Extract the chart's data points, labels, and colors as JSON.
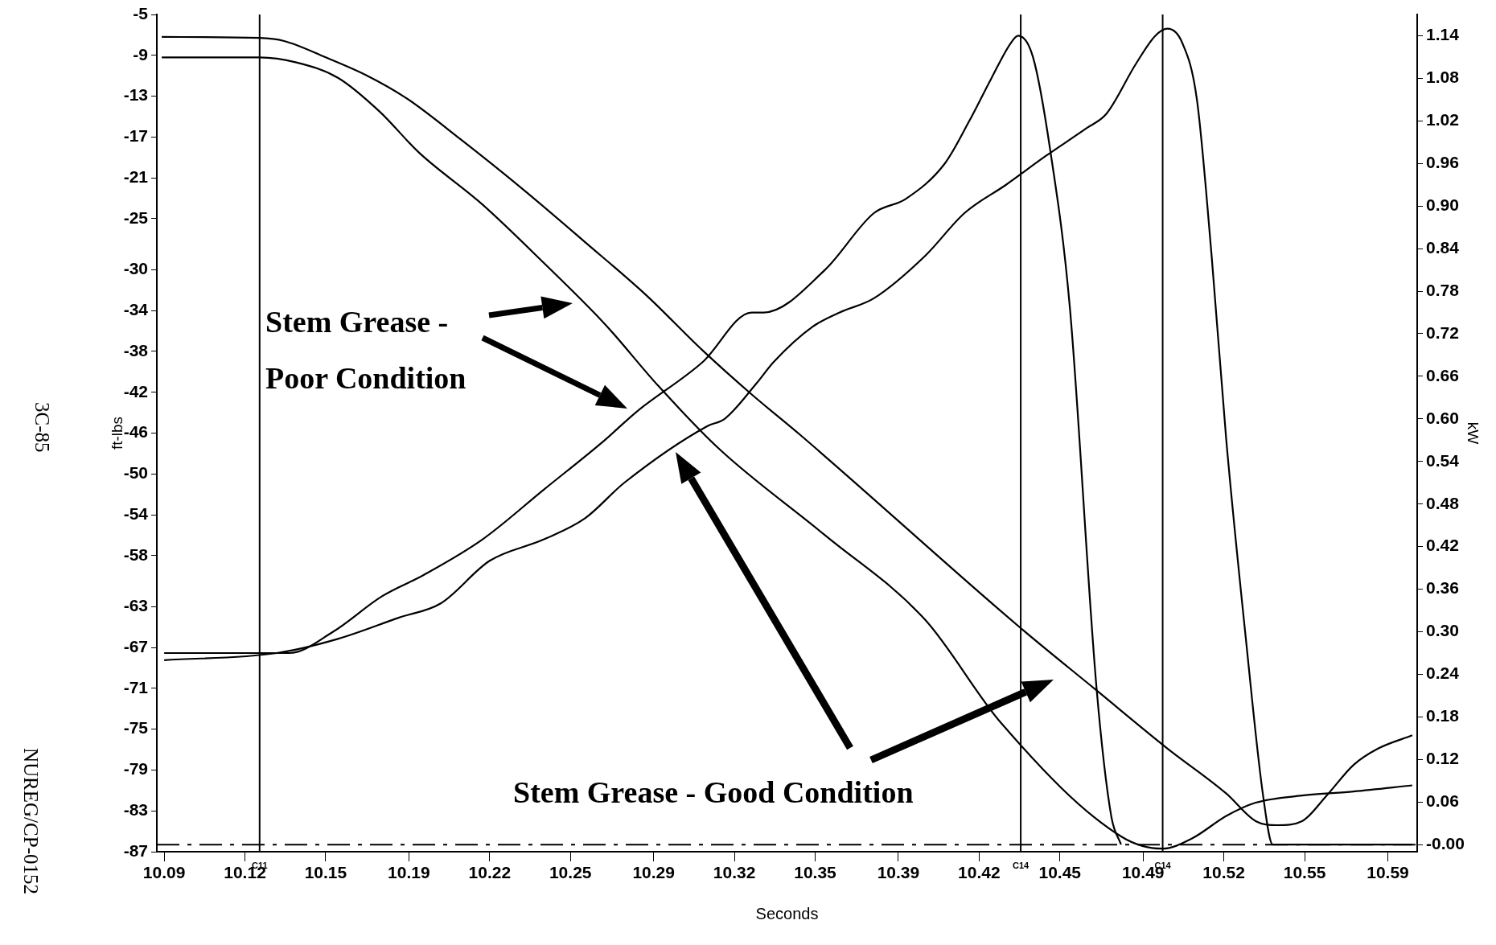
{
  "chart_data": {
    "type": "line",
    "xlabel": "Seconds",
    "ylabel": "ft-lbs",
    "y2label": "kW",
    "xlim": [
      10.084,
      10.599
    ],
    "ylim": [
      -87,
      -5
    ],
    "y2lim": [
      -0.01,
      1.17
    ],
    "xticks": [
      {
        "value": 10.087,
        "label": "10.09"
      },
      {
        "value": 10.12,
        "label": "10.12"
      },
      {
        "value": 10.153,
        "label": "10.15"
      },
      {
        "value": 10.187,
        "label": "10.19"
      },
      {
        "value": 10.22,
        "label": "10.22"
      },
      {
        "value": 10.253,
        "label": "10.25"
      },
      {
        "value": 10.287,
        "label": "10.29"
      },
      {
        "value": 10.32,
        "label": "10.32"
      },
      {
        "value": 10.353,
        "label": "10.35"
      },
      {
        "value": 10.387,
        "label": "10.39"
      },
      {
        "value": 10.42,
        "label": "10.42"
      },
      {
        "value": 10.453,
        "label": "10.45"
      },
      {
        "value": 10.487,
        "label": "10.49"
      },
      {
        "value": 10.52,
        "label": "10.52"
      },
      {
        "value": 10.553,
        "label": "10.55"
      },
      {
        "value": 10.587,
        "label": "10.59"
      }
    ],
    "yticks": [
      -5,
      -9,
      -13,
      -17,
      -21,
      -25,
      -30,
      -34,
      -38,
      -42,
      -46,
      -50,
      -54,
      -58,
      -63,
      -67,
      -71,
      -75,
      -79,
      -83,
      -87
    ],
    "y2ticks": [
      {
        "value": 0,
        "label": "-0.00"
      },
      {
        "value": 0.06,
        "label": "0.06"
      },
      {
        "value": 0.12,
        "label": "0.12"
      },
      {
        "value": 0.18,
        "label": "0.18"
      },
      {
        "value": 0.24,
        "label": "0.24"
      },
      {
        "value": 0.3,
        "label": "0.30"
      },
      {
        "value": 0.36,
        "label": "0.36"
      },
      {
        "value": 0.42,
        "label": "0.42"
      },
      {
        "value": 0.48,
        "label": "0.48"
      },
      {
        "value": 0.54,
        "label": "0.54"
      },
      {
        "value": 0.6,
        "label": "0.60"
      },
      {
        "value": 0.66,
        "label": "0.66"
      },
      {
        "value": 0.72,
        "label": "0.72"
      },
      {
        "value": 0.78,
        "label": "0.78"
      },
      {
        "value": 0.84,
        "label": "0.84"
      },
      {
        "value": 0.9,
        "label": "0.90"
      },
      {
        "value": 0.96,
        "label": "0.96"
      },
      {
        "value": 1.02,
        "label": "1.02"
      },
      {
        "value": 1.08,
        "label": "1.08"
      },
      {
        "value": 1.14,
        "label": "1.14"
      }
    ],
    "grid": false,
    "legend": false,
    "line_style": "solid",
    "series": [
      {
        "color": "#000000",
        "x": [
          10.086,
          10.126,
          10.136,
          10.153,
          10.17,
          10.186,
          10.208,
          10.233,
          10.259,
          10.284,
          10.307,
          10.327,
          10.347,
          10.437,
          10.468,
          10.497,
          10.521,
          10.533,
          10.542,
          10.552,
          10.562,
          10.573,
          10.583,
          10.597
        ],
        "values": [
          -7.2,
          -7.3,
          -7.6,
          -9.2,
          -11,
          -13.2,
          -17.2,
          -22,
          -27.3,
          -32.5,
          -37.9,
          -42.2,
          -46.2,
          -65.1,
          -71.2,
          -76.9,
          -81.3,
          -84,
          -84.4,
          -84,
          -81.5,
          -78.5,
          -76.9,
          -75.6
        ]
      },
      {
        "color": "#000000",
        "x": [
          10.086,
          10.126,
          10.141,
          10.158,
          10.175,
          10.191,
          10.217,
          10.242,
          10.267,
          10.289,
          10.314,
          10.357,
          10.398,
          10.429,
          10.478,
          10.495,
          10.507,
          10.521,
          10.533,
          10.552,
          10.573,
          10.597
        ],
        "values": [
          -9.2,
          -9.2,
          -9.7,
          -11.2,
          -14.5,
          -18.5,
          -23.6,
          -29.3,
          -35.3,
          -41.4,
          -47.6,
          -56,
          -64.3,
          -74.4,
          -85.5,
          -86.7,
          -85.7,
          -83.5,
          -82.2,
          -81.5,
          -81.1,
          -80.5
        ]
      },
      {
        "color": "#000000",
        "axis": "y2",
        "x": [
          10.087,
          10.126,
          10.138,
          10.156,
          10.176,
          10.193,
          10.217,
          10.242,
          10.267,
          10.28,
          10.307,
          10.327,
          10.332,
          10.357,
          10.377,
          10.39,
          10.406,
          10.416,
          10.425,
          10.433,
          10.436,
          10.442,
          10.449,
          10.457,
          10.468,
          10.474,
          10.478
        ],
        "values": [
          0.27,
          0.27,
          0.27,
          0.3,
          0.35,
          0.38,
          0.43,
          0.5,
          0.57,
          0.61,
          0.68,
          0.75,
          0.75,
          0.81,
          0.89,
          0.91,
          0.96,
          1.02,
          1.08,
          1.13,
          1.14,
          1.11,
          0.98,
          0.76,
          0.22,
          0.04,
          0
        ]
      },
      {
        "color": "#000000",
        "axis": "y2",
        "x": [
          10.087,
          10.133,
          10.158,
          10.183,
          10.2,
          10.22,
          10.242,
          10.259,
          10.275,
          10.309,
          10.316,
          10.329,
          10.336,
          10.352,
          10.363,
          10.377,
          10.398,
          10.414,
          10.431,
          10.447,
          10.464,
          10.472,
          10.484,
          10.492,
          10.497,
          10.503,
          10.509,
          10.515,
          10.521,
          10.529,
          10.536,
          10.54,
          10.597
        ],
        "values": [
          0.26,
          0.27,
          0.29,
          0.32,
          0.34,
          0.4,
          0.43,
          0.46,
          0.51,
          0.59,
          0.6,
          0.65,
          0.68,
          0.73,
          0.75,
          0.77,
          0.83,
          0.89,
          0.93,
          0.97,
          1.01,
          1.03,
          1.1,
          1.14,
          1.15,
          1.13,
          1.05,
          0.83,
          0.57,
          0.29,
          0.07,
          0,
          0
        ]
      }
    ],
    "ref_lines": [
      {
        "axis": "x",
        "value": 10.126,
        "label": "C11"
      },
      {
        "axis": "x",
        "value": 10.437,
        "label": "C14"
      },
      {
        "axis": "x",
        "value": 10.495,
        "label": "C14"
      },
      {
        "axis": "y2",
        "value": 0,
        "line_style": "dashed"
      }
    ],
    "annotations": [
      "Stem Grease - Poor Condition",
      "Stem Grease - Good Condition",
      "3C-85",
      "NUREG/CP-0152"
    ]
  }
}
